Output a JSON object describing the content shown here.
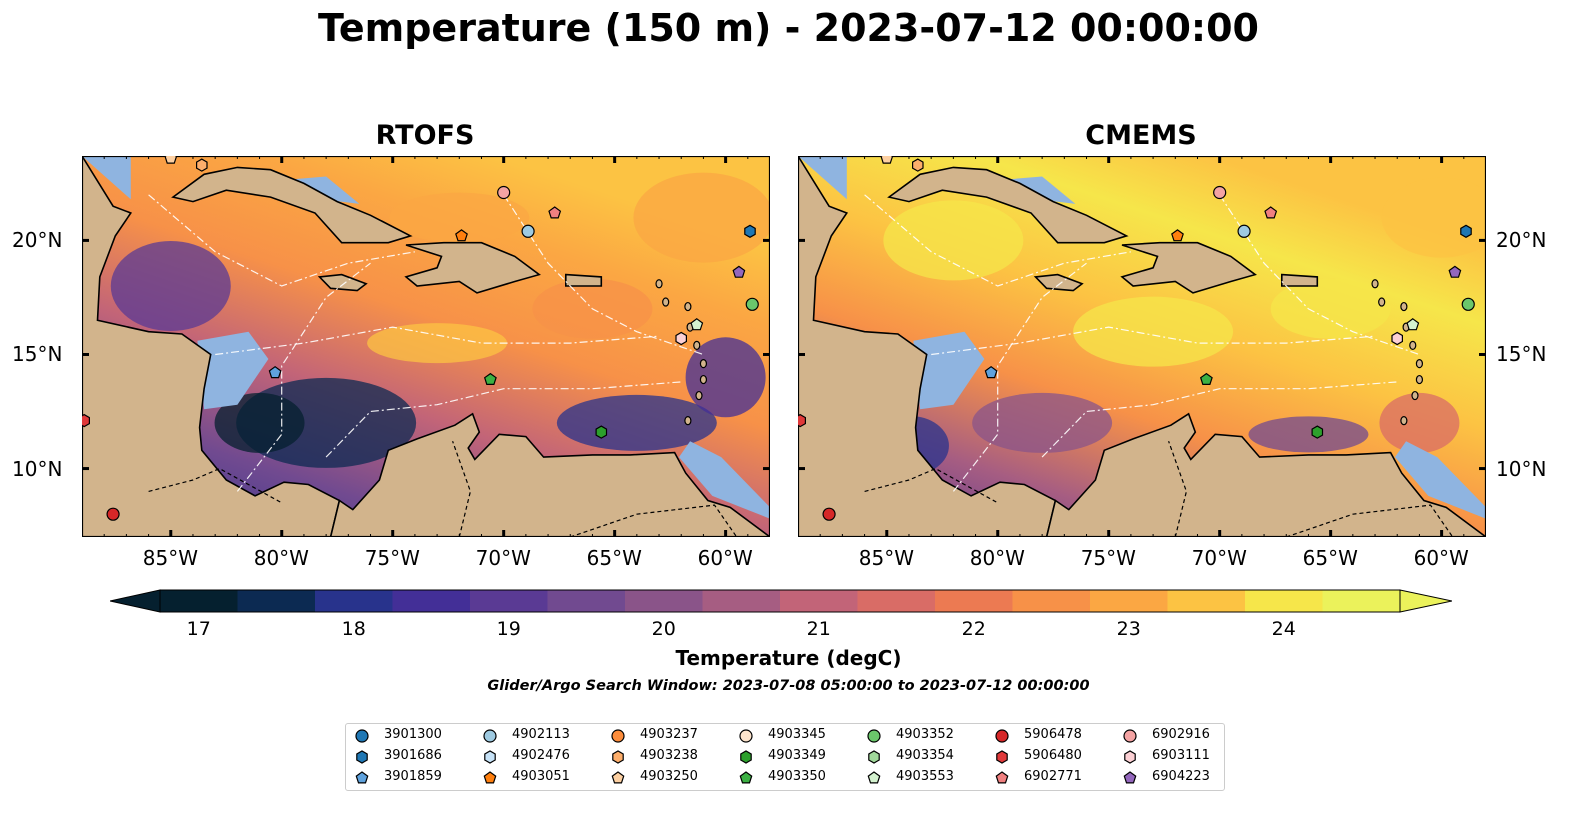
{
  "title": "Temperature (150 m) - 2023-07-12 00:00:00",
  "panels": [
    {
      "title": "RTOFS",
      "style": "rtofs"
    },
    {
      "title": "CMEMS",
      "style": "cmems"
    }
  ],
  "axes": {
    "lon_ticks": [
      "85°W",
      "80°W",
      "75°W",
      "70°W",
      "65°W",
      "60°W"
    ],
    "lat_ticks": [
      "20°N",
      "15°N",
      "10°N"
    ],
    "lon_range": [
      -89,
      -58
    ],
    "lat_range": [
      7,
      23.7
    ]
  },
  "colorbar": {
    "label": "Temperature (degC)",
    "ticks": [
      "17",
      "18",
      "19",
      "20",
      "21",
      "22",
      "23",
      "24"
    ],
    "range": [
      16.75,
      24.75
    ],
    "step": 0.5,
    "colors": [
      "#05202f",
      "#0c2a52",
      "#28338c",
      "#432f97",
      "#5a3a94",
      "#714a90",
      "#8a5489",
      "#a65d82",
      "#c26478",
      "#d96c66",
      "#ec7a52",
      "#f79148",
      "#fba743",
      "#fcc343",
      "#f6e64a",
      "#ebf25b"
    ],
    "extend": "both"
  },
  "search_window": "Glider/Argo Search Window: 2023-07-08 05:00:00 to 2023-07-12 00:00:00",
  "legend": [
    {
      "id": "3901300",
      "color": "#1f77b4",
      "shape": "circle"
    },
    {
      "id": "3901686",
      "color": "#1f77b4",
      "shape": "hexagon"
    },
    {
      "id": "3901859",
      "color": "#5fa2dd",
      "shape": "pentagon"
    },
    {
      "id": "4902113",
      "color": "#9ecae1",
      "shape": "circle"
    },
    {
      "id": "4902476",
      "color": "#c6e2f7",
      "shape": "hexagon"
    },
    {
      "id": "4903051",
      "color": "#ff7f0e",
      "shape": "pentagon"
    },
    {
      "id": "4903237",
      "color": "#fd8d3c",
      "shape": "circle"
    },
    {
      "id": "4903238",
      "color": "#fdae6b",
      "shape": "hexagon"
    },
    {
      "id": "4903250",
      "color": "#fdd0a2",
      "shape": "pentagon"
    },
    {
      "id": "4903345",
      "color": "#fde4cc",
      "shape": "circle"
    },
    {
      "id": "4903349",
      "color": "#2ca02c",
      "shape": "hexagon"
    },
    {
      "id": "4903350",
      "color": "#3cb043",
      "shape": "pentagon"
    },
    {
      "id": "4903352",
      "color": "#6bc76b",
      "shape": "circle"
    },
    {
      "id": "4903354",
      "color": "#a1d99b",
      "shape": "hexagon"
    },
    {
      "id": "4903553",
      "color": "#d4f2cf",
      "shape": "pentagon"
    },
    {
      "id": "5906478",
      "color": "#d62728",
      "shape": "circle"
    },
    {
      "id": "5906480",
      "color": "#e0393a",
      "shape": "hexagon"
    },
    {
      "id": "6902771",
      "color": "#f08080",
      "shape": "pentagon"
    },
    {
      "id": "6902916",
      "color": "#f4a3a3",
      "shape": "circle"
    },
    {
      "id": "6903111",
      "color": "#fcd0d4",
      "shape": "hexagon"
    },
    {
      "id": "6904223",
      "color": "#9467bd",
      "shape": "pentagon"
    }
  ],
  "floats": [
    {
      "id": "4903250",
      "lon": -85.0,
      "lat": 23.6
    },
    {
      "id": "4903238",
      "lon": -83.6,
      "lat": 23.3
    },
    {
      "id": "6902916",
      "lon": -70.0,
      "lat": 22.1
    },
    {
      "id": "6902771",
      "lon": -67.7,
      "lat": 21.2
    },
    {
      "id": "4903051",
      "lon": -71.9,
      "lat": 20.2
    },
    {
      "id": "4902113",
      "lon": -68.9,
      "lat": 20.4
    },
    {
      "id": "3901686",
      "lon": -58.9,
      "lat": 20.4
    },
    {
      "id": "6904223",
      "lon": -59.4,
      "lat": 18.6
    },
    {
      "id": "4903352",
      "lon": -58.8,
      "lat": 17.2
    },
    {
      "id": "4903553",
      "lon": -61.3,
      "lat": 16.3
    },
    {
      "id": "6903111",
      "lon": -62.0,
      "lat": 15.7
    },
    {
      "id": "3901859",
      "lon": -80.3,
      "lat": 14.2
    },
    {
      "id": "4903350",
      "lon": -70.6,
      "lat": 13.9
    },
    {
      "id": "4903349",
      "lon": -65.6,
      "lat": 11.6
    },
    {
      "id": "5906480",
      "lon": -88.9,
      "lat": 12.1
    },
    {
      "id": "5906478",
      "lon": -87.6,
      "lat": 8.0
    }
  ]
}
